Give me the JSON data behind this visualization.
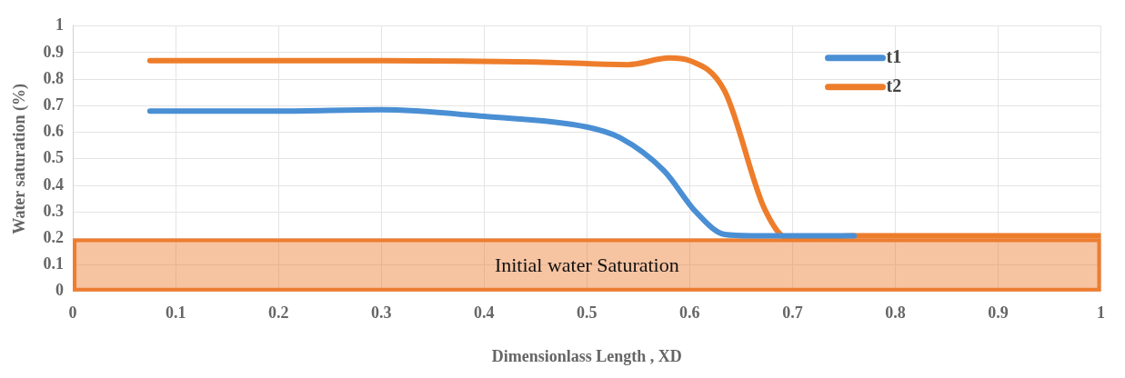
{
  "chart_data": {
    "type": "line",
    "xlabel": "Dimensionlass Length , XD",
    "ylabel": "Water saturation (%)",
    "xlim": [
      0,
      1
    ],
    "xticks": [
      0,
      0.1,
      0.2,
      0.3,
      0.4,
      0.5,
      0.6,
      0.7,
      0.8,
      0.9,
      1
    ],
    "ylim": [
      0,
      1
    ],
    "yticks": [
      0,
      0.1,
      0.2,
      0.3,
      0.4,
      0.5,
      0.6,
      0.7,
      0.8,
      0.9,
      1
    ],
    "grid": true,
    "legend": "top right",
    "bands": [
      {
        "axis": "y",
        "from": 0,
        "to": 0.2,
        "label": "Initial water Saturation",
        "color": "#ed7d31"
      }
    ],
    "series": [
      {
        "name": "t1",
        "color": "#4a8fd4",
        "x": [
          0.075,
          0.2,
          0.3,
          0.4,
          0.5,
          0.532,
          0.575,
          0.606,
          0.634,
          0.66,
          0.7,
          0.76
        ],
        "values": [
          0.68,
          0.68,
          0.685,
          0.66,
          0.62,
          0.58,
          0.455,
          0.3,
          0.215,
          0.21,
          0.21,
          0.21
        ]
      },
      {
        "name": "t2",
        "color": "#ee7d2b",
        "x": [
          0.075,
          0.3,
          0.45,
          0.54,
          0.58,
          0.6,
          0.634,
          0.673,
          0.696,
          0.72,
          0.76,
          1
        ],
        "values": [
          0.87,
          0.87,
          0.865,
          0.855,
          0.88,
          0.87,
          0.756,
          0.31,
          0.2,
          0.2,
          0.21,
          0.21
        ]
      }
    ]
  }
}
